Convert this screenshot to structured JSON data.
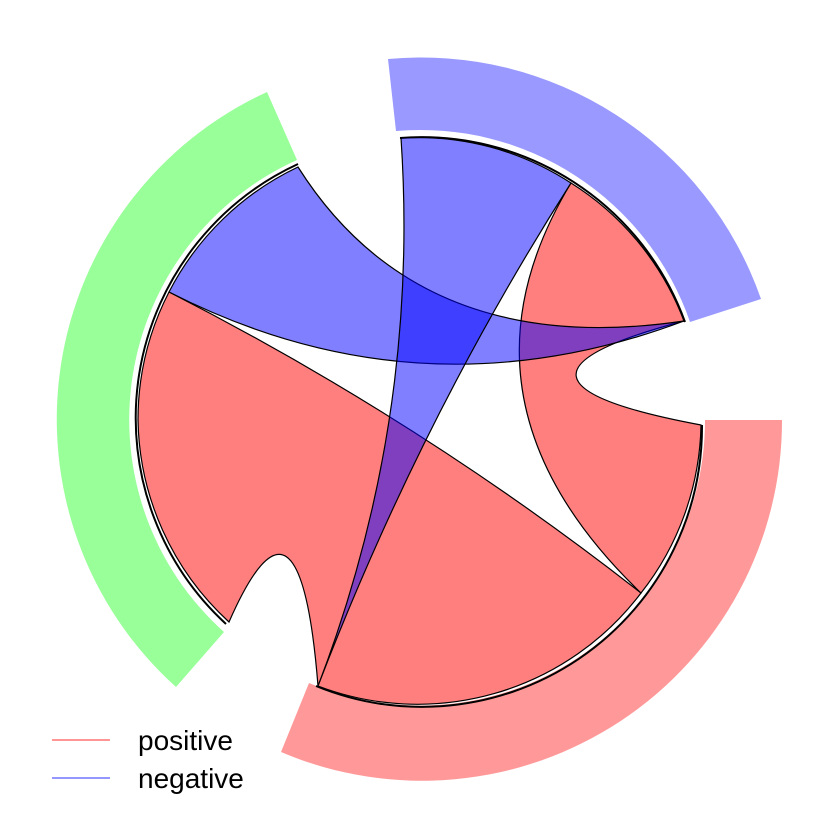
{
  "colors": {
    "green_sector": "#99FF99",
    "blue_sector": "#9999FF",
    "red_sector": "#FF9999",
    "positive_link": "#FF0000",
    "negative_link": "#0000FF"
  },
  "legend": {
    "positive": "positive",
    "negative": "negative"
  }
}
